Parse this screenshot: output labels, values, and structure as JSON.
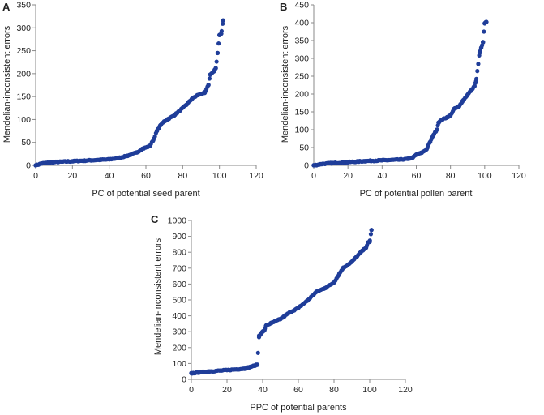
{
  "chart_data": [
    {
      "type": "scatter",
      "panel": "A",
      "xlabel": "PC of potential seed parent",
      "ylabel": "Mendelian-inconsistent errors",
      "xlim": [
        0,
        120
      ],
      "ylim": [
        0,
        350
      ],
      "xticks": [
        0,
        20,
        40,
        60,
        80,
        100,
        120
      ],
      "yticks": [
        0,
        50,
        100,
        150,
        200,
        250,
        300,
        350
      ],
      "color": "#1f3d99",
      "trend": [
        [
          0,
          0
        ],
        [
          3,
          4
        ],
        [
          10,
          7
        ],
        [
          20,
          9
        ],
        [
          30,
          11
        ],
        [
          40,
          13
        ],
        [
          45,
          16
        ],
        [
          50,
          21
        ],
        [
          55,
          28
        ],
        [
          58,
          36
        ],
        [
          62,
          42
        ],
        [
          64,
          55
        ],
        [
          66,
          75
        ],
        [
          68,
          88
        ],
        [
          70,
          96
        ],
        [
          72,
          101
        ],
        [
          75,
          108
        ],
        [
          78,
          118
        ],
        [
          82,
          132
        ],
        [
          85,
          145
        ],
        [
          88,
          153
        ],
        [
          92,
          158
        ],
        [
          94,
          175
        ],
        [
          95,
          198
        ],
        [
          97,
          205
        ],
        [
          98,
          212
        ],
        [
          99,
          245
        ],
        [
          100,
          284
        ],
        [
          101,
          287
        ],
        [
          102,
          316
        ]
      ]
    },
    {
      "type": "scatter",
      "panel": "B",
      "xlabel": "PC of potential pollen parent",
      "ylabel": "Mendelian-inconsistent errors",
      "xlim": [
        0,
        120
      ],
      "ylim": [
        0,
        450
      ],
      "xticks": [
        0,
        20,
        40,
        60,
        80,
        100,
        120
      ],
      "yticks": [
        0,
        50,
        100,
        150,
        200,
        250,
        300,
        350,
        400,
        450
      ],
      "color": "#1f3d99",
      "trend": [
        [
          0,
          0
        ],
        [
          5,
          4
        ],
        [
          10,
          6
        ],
        [
          20,
          9
        ],
        [
          30,
          12
        ],
        [
          40,
          14
        ],
        [
          50,
          16
        ],
        [
          55,
          18
        ],
        [
          58,
          22
        ],
        [
          60,
          30
        ],
        [
          63,
          35
        ],
        [
          66,
          45
        ],
        [
          68,
          65
        ],
        [
          70,
          85
        ],
        [
          72,
          100
        ],
        [
          73,
          120
        ],
        [
          75,
          128
        ],
        [
          78,
          135
        ],
        [
          80,
          140
        ],
        [
          82,
          158
        ],
        [
          85,
          165
        ],
        [
          87,
          180
        ],
        [
          90,
          198
        ],
        [
          92,
          210
        ],
        [
          94,
          222
        ],
        [
          95,
          236
        ],
        [
          97,
          315
        ],
        [
          98,
          330
        ],
        [
          99,
          345
        ],
        [
          100,
          398
        ],
        [
          101,
          402
        ]
      ]
    },
    {
      "type": "scatter",
      "panel": "C",
      "xlabel": "PPC of potential parents",
      "ylabel": "Mendelian-inconsistent errors",
      "xlim": [
        0,
        120
      ],
      "ylim": [
        0,
        1000
      ],
      "xticks": [
        0,
        20,
        40,
        60,
        80,
        100,
        120
      ],
      "yticks": [
        0,
        100,
        200,
        300,
        400,
        500,
        600,
        700,
        800,
        900,
        1000
      ],
      "color": "#1f3d99",
      "trend": [
        [
          0,
          38
        ],
        [
          5,
          45
        ],
        [
          10,
          50
        ],
        [
          20,
          58
        ],
        [
          30,
          68
        ],
        [
          35,
          85
        ],
        [
          37,
          93
        ],
        [
          38,
          275
        ],
        [
          40,
          300
        ],
        [
          41,
          310
        ],
        [
          42,
          340
        ],
        [
          45,
          355
        ],
        [
          50,
          380
        ],
        [
          55,
          420
        ],
        [
          60,
          450
        ],
        [
          65,
          495
        ],
        [
          70,
          550
        ],
        [
          75,
          575
        ],
        [
          80,
          610
        ],
        [
          83,
          665
        ],
        [
          85,
          700
        ],
        [
          90,
          740
        ],
        [
          95,
          800
        ],
        [
          98,
          830
        ],
        [
          99,
          860
        ],
        [
          100,
          865
        ],
        [
          101,
          940
        ]
      ]
    }
  ]
}
